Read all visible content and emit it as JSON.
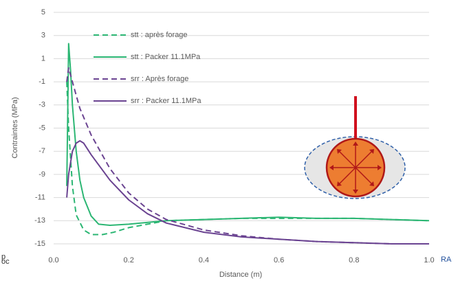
{
  "chart_data": {
    "type": "line",
    "x_label": "Distance (m)",
    "y_label": "Contraintes (MPa)",
    "xlim": [
      0,
      1
    ],
    "ylim": [
      -15,
      5
    ],
    "xticks": [
      {
        "value": 0,
        "label": "0.0"
      },
      0.2,
      0.4,
      0.6,
      0.8,
      {
        "value": 1,
        "label": "1.0"
      }
    ],
    "yticks": [
      5,
      3,
      1,
      -1,
      -3,
      -5,
      -7,
      -9,
      -11,
      -13,
      -15
    ],
    "grid": true,
    "legend": "upper left",
    "series": [
      {
        "name": "stt : après forage",
        "color": "#2bb673",
        "dash": true,
        "x": [
          0.035,
          0.04,
          0.05,
          0.06,
          0.08,
          0.1,
          0.13,
          0.16,
          0.2,
          0.25,
          0.3,
          0.4,
          0.5,
          0.6,
          0.7,
          0.8,
          0.9,
          1.0
        ],
        "values": [
          -1,
          -5,
          -10,
          -12.5,
          -13.8,
          -14.2,
          -14.2,
          -14,
          -13.6,
          -13.3,
          -13.0,
          -12.9,
          -12.8,
          -12.8,
          -12.8,
          -12.8,
          -12.9,
          -13.0
        ]
      },
      {
        "name": "stt : Packer 11.1MPa",
        "color": "#2bb673",
        "dash": false,
        "x": [
          0.035,
          0.04,
          0.045,
          0.05,
          0.06,
          0.07,
          0.08,
          0.1,
          0.12,
          0.15,
          0.2,
          0.3,
          0.4,
          0.5,
          0.6,
          0.7,
          0.8,
          0.9,
          1.0
        ],
        "values": [
          -10,
          2.3,
          0,
          -3,
          -7,
          -9.5,
          -11,
          -12.6,
          -13.3,
          -13.4,
          -13.3,
          -13.0,
          -12.9,
          -12.8,
          -12.7,
          -12.8,
          -12.8,
          -12.9,
          -13.0
        ]
      },
      {
        "name": "srr : Après forage",
        "color": "#6a4391",
        "dash": true,
        "x": [
          0.035,
          0.04,
          0.05,
          0.07,
          0.1,
          0.15,
          0.2,
          0.25,
          0.3,
          0.4,
          0.5,
          0.6,
          0.7,
          0.8,
          0.9,
          1.0
        ],
        "values": [
          -1,
          0.2,
          -1,
          -3.3,
          -5.6,
          -8.5,
          -10.6,
          -12,
          -12.9,
          -13.8,
          -14.3,
          -14.6,
          -14.8,
          -14.9,
          -15,
          -15
        ]
      },
      {
        "name": "srr : Packer 11.1MPa",
        "color": "#6a4391",
        "dash": false,
        "x": [
          0.035,
          0.04,
          0.05,
          0.06,
          0.07,
          0.08,
          0.1,
          0.15,
          0.2,
          0.25,
          0.3,
          0.4,
          0.5,
          0.6,
          0.7,
          0.8,
          0.9,
          1.0
        ],
        "values": [
          -11,
          -9,
          -7,
          -6.3,
          -6.1,
          -6.3,
          -7.3,
          -9.5,
          -11.2,
          -12.4,
          -13.2,
          -14,
          -14.4,
          -14.6,
          -14.8,
          -14.9,
          -15,
          -15
        ]
      }
    ],
    "annotations": [
      "RA",
      "p",
      "oc"
    ]
  }
}
